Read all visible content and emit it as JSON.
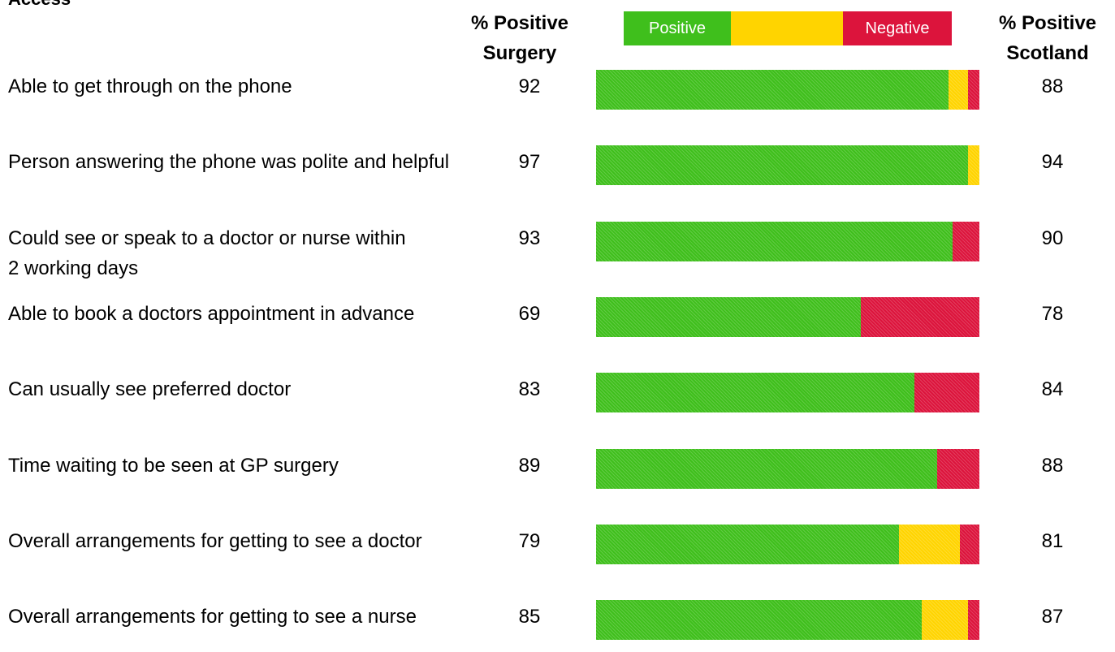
{
  "chart_data": {
    "type": "stacked_barh",
    "title": "Access",
    "surgery_header": "% Positive Surgery",
    "scotland_header": "% Positive Scotland",
    "categories": [
      "Able to get through on the phone",
      "Person answering the phone was polite and helpful",
      "Could see or speak to a doctor or nurse within 2 working days",
      "Able to book a doctors appointment in advance",
      "Can usually see preferred doctor",
      "Time waiting to be seen at GP surgery",
      "Overall arrangements for getting to see a doctor",
      "Overall arrangements for getting to see a nurse"
    ],
    "series": [
      {
        "name": "Positive",
        "color": "#3fbf1c",
        "values": [
          92,
          97,
          93,
          69,
          83,
          89,
          79,
          85
        ]
      },
      {
        "color": "#ffd400",
        "values": [
          5,
          3,
          0,
          0,
          0,
          0,
          16,
          12
        ]
      },
      {
        "name": "Negative",
        "color": "#dc143c",
        "values": [
          3,
          0,
          7,
          31,
          17,
          11,
          5,
          3
        ]
      }
    ],
    "scotland": [
      88,
      94,
      90,
      78,
      84,
      88,
      81,
      87
    ],
    "xlim": [
      0,
      100
    ]
  }
}
